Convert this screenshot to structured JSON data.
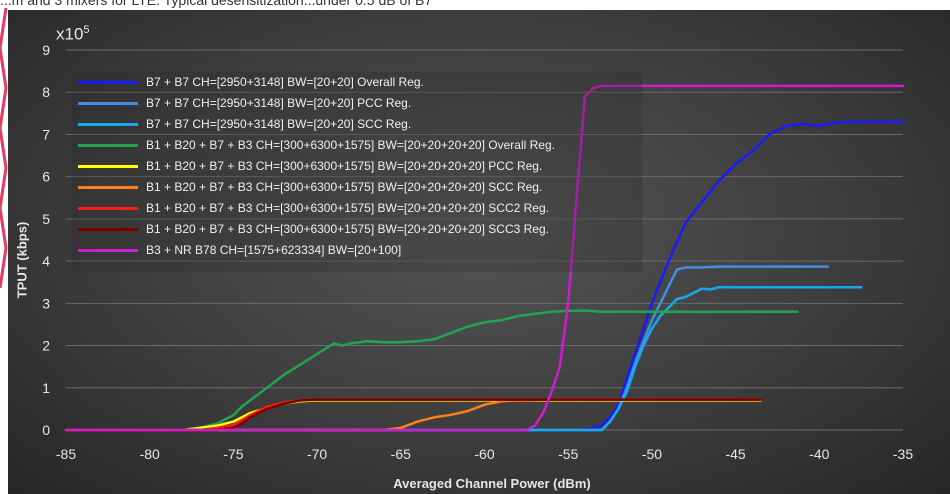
{
  "header": {
    "caption": "...m and 3 mixers for LTE. Typical desensitization...under 0.5 dB of B7"
  },
  "chart_data": {
    "type": "line",
    "title": "",
    "xlabel": "Averaged Channel Power (dBm)",
    "ylabel": "TPUT (kbps)",
    "y_multiplier_label": "x10",
    "y_multiplier_exp": "5",
    "xlim": [
      -85,
      -35
    ],
    "ylim": [
      0,
      9
    ],
    "x_ticks": [
      -85,
      -80,
      -75,
      -70,
      -65,
      -60,
      -55,
      -50,
      -45,
      -40,
      -35
    ],
    "y_ticks": [
      0,
      1,
      2,
      3,
      4,
      5,
      6,
      7,
      8,
      9
    ],
    "grid": true,
    "legend_position": "top-left",
    "series": [
      {
        "name": "B7 + B7 CH=[2950+3148] BW=[20+20] Overall Reg.",
        "color": "#1a1aff",
        "x": [
          -85,
          -56,
          -54,
          -53,
          -52.5,
          -52,
          -51.5,
          -51,
          -50.5,
          -50,
          -49,
          -48,
          -47,
          -46,
          -45,
          -44,
          -43.5,
          -43,
          -42,
          -41,
          -40,
          -39,
          -38,
          -37,
          -36,
          -35
        ],
        "y": [
          0,
          0,
          0,
          0.1,
          0.3,
          0.6,
          1.2,
          1.8,
          2.4,
          3,
          4,
          4.9,
          5.4,
          5.9,
          6.3,
          6.6,
          6.8,
          7.0,
          7.2,
          7.25,
          7.2,
          7.28,
          7.3,
          7.3,
          7.3,
          7.3
        ]
      },
      {
        "name": "B7 + B7 CH=[2950+3148] BW=[20+20] PCC Reg.",
        "color": "#3f8fe6",
        "x": [
          -85,
          -56,
          -53,
          -52.5,
          -52,
          -51.5,
          -51,
          -50.5,
          -50,
          -49.5,
          -49,
          -48.5,
          -48,
          -47,
          -46,
          -45,
          -44,
          -43,
          -42,
          -41,
          -40,
          -39.5
        ],
        "y": [
          0,
          0,
          0,
          0.2,
          0.5,
          1.0,
          1.6,
          2.1,
          2.6,
          3.0,
          3.4,
          3.8,
          3.85,
          3.85,
          3.87,
          3.87,
          3.87,
          3.87,
          3.87,
          3.87,
          3.87,
          3.87
        ]
      },
      {
        "name": "B7 + B7 CH=[2950+3148] BW=[20+20] SCC Reg.",
        "color": "#18a8f0",
        "x": [
          -85,
          -56,
          -53,
          -52.5,
          -52,
          -51.5,
          -51,
          -50.5,
          -50,
          -49.5,
          -49,
          -48.5,
          -48,
          -47,
          -46.5,
          -46,
          -45,
          -44,
          -43,
          -42,
          -41,
          -40,
          -39,
          -38,
          -37.5
        ],
        "y": [
          0,
          0,
          0,
          0.2,
          0.5,
          0.9,
          1.5,
          2.0,
          2.4,
          2.7,
          2.9,
          3.1,
          3.15,
          3.35,
          3.33,
          3.38,
          3.38,
          3.38,
          3.38,
          3.38,
          3.38,
          3.38,
          3.38,
          3.38,
          3.38
        ]
      },
      {
        "name": "B1 + B20 + B7 + B3 CH=[300+6300+1575] BW=[20+20+20+20] Overall Reg.",
        "color": "#1fa552",
        "x": [
          -85,
          -78,
          -77,
          -76,
          -75.5,
          -75,
          -74.5,
          -74,
          -73,
          -72,
          -71,
          -70,
          -69,
          -68.5,
          -68,
          -67,
          -66,
          -65,
          -64,
          -63,
          -62,
          -61,
          -60,
          -59,
          -58,
          -57,
          -56,
          -55,
          -54,
          -53,
          -52,
          -50,
          -48,
          -45,
          -42,
          -41.3
        ],
        "y": [
          0,
          0,
          0.05,
          0.15,
          0.25,
          0.35,
          0.55,
          0.7,
          1.0,
          1.3,
          1.55,
          1.8,
          2.05,
          2.0,
          2.05,
          2.1,
          2.08,
          2.08,
          2.1,
          2.15,
          2.3,
          2.45,
          2.55,
          2.6,
          2.7,
          2.75,
          2.8,
          2.82,
          2.83,
          2.8,
          2.8,
          2.8,
          2.8,
          2.8,
          2.8,
          2.8
        ]
      },
      {
        "name": "B1 + B20 + B7 + B3 CH=[300+6300+1575] BW=[20+20+20+20] PCC Reg.",
        "color": "#ffff00",
        "x": [
          -85,
          -78,
          -77,
          -76,
          -75,
          -74,
          -73,
          -72,
          -71,
          -70,
          -68,
          -60,
          -50,
          -43.5
        ],
        "y": [
          0,
          0,
          0.05,
          0.1,
          0.2,
          0.4,
          0.52,
          0.62,
          0.68,
          0.7,
          0.7,
          0.7,
          0.7,
          0.7
        ]
      },
      {
        "name": "B1 + B20 + B7 + B3 CH=[300+6300+1575] BW=[20+20+20+20] SCC Reg.",
        "color": "#ff7f1f",
        "x": [
          -85,
          -66,
          -65,
          -64,
          -63,
          -62,
          -61,
          -60,
          -59,
          -58,
          -56,
          -50,
          -43.5
        ],
        "y": [
          0,
          0,
          0.05,
          0.2,
          0.3,
          0.36,
          0.45,
          0.6,
          0.68,
          0.7,
          0.72,
          0.72,
          0.72
        ]
      },
      {
        "name": "B1 + B20 + B7 + B3 CH=[300+6300+1575] BW=[20+20+20+20] SCC2 Reg.",
        "color": "#ff1a1a",
        "x": [
          -85,
          -77,
          -76,
          -75,
          -74,
          -73,
          -72,
          -71,
          -70,
          -68,
          -60,
          -50,
          -43.5
        ],
        "y": [
          0,
          0,
          0.05,
          0.12,
          0.35,
          0.55,
          0.65,
          0.7,
          0.72,
          0.72,
          0.72,
          0.72,
          0.72
        ]
      },
      {
        "name": "B1 + B20 + B7 + B3 CH=[300+6300+1575] BW=[20+20+20+20] SCC3 Reg.",
        "color": "#7a0000",
        "x": [
          -85,
          -76,
          -75,
          -74.5,
          -74,
          -73,
          -72,
          -71,
          -70,
          -68,
          -60,
          -50,
          -43.5
        ],
        "y": [
          0,
          0,
          0.05,
          0.15,
          0.3,
          0.5,
          0.62,
          0.7,
          0.72,
          0.72,
          0.72,
          0.72,
          0.72
        ]
      },
      {
        "name": "B3 + NR B78 CH=[1575+623334] BW=[20+100]",
        "color": "#d11bd1",
        "x": [
          -85,
          -70,
          -65,
          -60,
          -57.5,
          -57,
          -56.5,
          -56,
          -55.5,
          -55,
          -54.5,
          -54,
          -53.5,
          -53,
          -52.5,
          -52,
          -51,
          -50,
          -45,
          -40,
          -35
        ],
        "y": [
          0,
          0,
          0,
          0,
          0,
          0.1,
          0.4,
          0.9,
          1.5,
          3.0,
          5.5,
          7.9,
          8.1,
          8.15,
          8.15,
          8.15,
          8.15,
          8.15,
          8.15,
          8.15,
          8.15
        ]
      }
    ]
  }
}
